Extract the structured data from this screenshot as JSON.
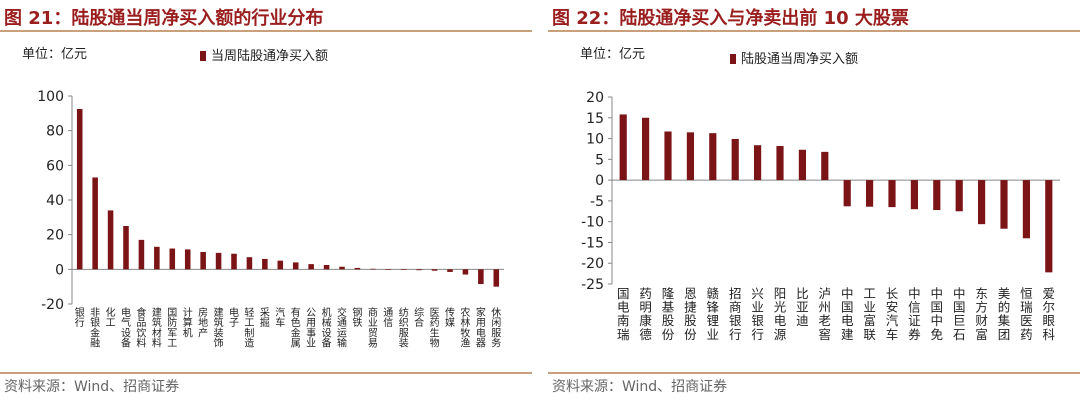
{
  "left": {
    "title": "图 21：陆股通当周净买入额的行业分布",
    "unit": "单位：亿元",
    "source": "资料来源：Wind、招商证券"
  },
  "right": {
    "title": "图 22：陆股通净买入与净卖出前 10 大股票",
    "unit": "单位：亿元",
    "source": "资料来源：Wind、招商证券"
  },
  "colors": {
    "bar": "#7b1416",
    "axis": "#888888",
    "title": "#9a1e1e",
    "rule": "#c9a07a"
  },
  "chart_data": [
    {
      "type": "bar",
      "title": "",
      "xlabel": "",
      "ylabel": "",
      "ylim": [
        -20,
        100
      ],
      "yticks": [
        -20,
        0,
        20,
        40,
        60,
        80,
        100
      ],
      "legend": "top",
      "grid": false,
      "categories": [
        "银行",
        "非银金融",
        "化工",
        "电气设备",
        "食品饮料",
        "建筑材料",
        "国防军工",
        "计算机",
        "房地产",
        "建筑装饰",
        "电子",
        "轻工制造",
        "采掘",
        "汽车",
        "有色金属",
        "公用事业",
        "机械设备",
        "交通运输",
        "钢铁",
        "商业贸易",
        "通信",
        "纺织服装",
        "综合",
        "医药生物",
        "传媒",
        "农林牧渔",
        "家用电器",
        "休闲服务"
      ],
      "series": [
        {
          "name": "当周陆股通净买入额",
          "values": [
            92.5,
            53,
            34,
            25,
            17,
            13,
            12,
            11.5,
            10,
            9.5,
            9,
            7,
            6,
            5,
            4,
            3,
            2.5,
            1.5,
            0.8,
            0.3,
            0.1,
            -0.3,
            -0.5,
            -0.8,
            -1.5,
            -3,
            -8.5,
            -10
          ]
        }
      ]
    },
    {
      "type": "bar",
      "title": "",
      "xlabel": "",
      "ylabel": "",
      "ylim": [
        -25,
        20
      ],
      "yticks": [
        -25,
        -20,
        -15,
        -10,
        -5,
        0,
        5,
        10,
        15,
        20
      ],
      "legend": "top",
      "grid": false,
      "categories": [
        "国电南瑞",
        "药明康德",
        "隆基股份",
        "恩捷股份",
        "赣锋锂业",
        "招商银行",
        "兴业银行",
        "阳光电源",
        "比亚迪",
        "泸州老窖",
        "中国电建",
        "工业富联",
        "长安汽车",
        "中信证券",
        "中国中免",
        "中国巨石",
        "东方财富",
        "美的集团",
        "恒瑞医药",
        "爱尔眼科"
      ],
      "series": [
        {
          "name": "陆股通当周净买入额",
          "values": [
            15.8,
            15,
            11.7,
            11.5,
            11.3,
            9.9,
            8.4,
            8.2,
            7.3,
            6.8,
            -6.3,
            -6.4,
            -6.5,
            -7,
            -7.2,
            -7.5,
            -10.6,
            -11.7,
            -14,
            -22.2
          ]
        }
      ]
    }
  ]
}
